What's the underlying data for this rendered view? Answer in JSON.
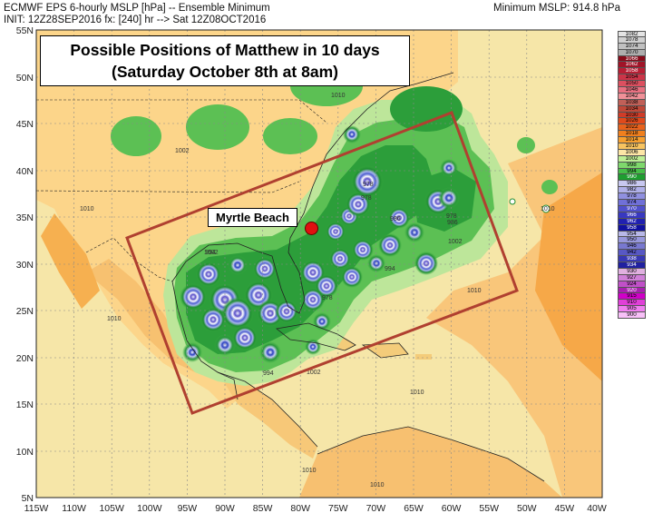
{
  "header": {
    "line1": "ECMWF EPS 6-hourly MSLP [hPa] -- Ensemble Minimum",
    "line2": "INIT: 12Z28SEP2016 fx: [240] hr --> Sat 12Z08OCT2016",
    "min_mslp": "Minimum MSLP: 914.8 hPa"
  },
  "title": {
    "line1": "Possible Positions of Matthew in 10 days",
    "line2": "(Saturday October 8th at 8am)"
  },
  "annotation": {
    "label": "Myrtle Beach",
    "lon": -78.9,
    "lat": 33.7
  },
  "axes": {
    "lat_ticks": [
      "55N",
      "50N",
      "45N",
      "40N",
      "35N",
      "30N",
      "25N",
      "20N",
      "15N",
      "10N",
      "5N"
    ],
    "lon_ticks": [
      "115W",
      "110W",
      "105W",
      "100W",
      "95W",
      "90W",
      "85W",
      "80W",
      "75W",
      "70W",
      "65W",
      "60W",
      "55W",
      "50W",
      "45W",
      "40W"
    ]
  },
  "contour_labels": [
    "1010",
    "1010",
    "1010",
    "1010",
    "1002",
    "1002",
    "1002",
    "1002",
    "994",
    "994",
    "994",
    "986",
    "986",
    "978",
    "978",
    "978",
    "978",
    "1010",
    "1010",
    "1010",
    "1010"
  ],
  "legend": {
    "labels": [
      "1082",
      "1078",
      "1074",
      "1070",
      "1066",
      "1062",
      "1058",
      "1054",
      "1050",
      "1046",
      "1042",
      "1038",
      "1034",
      "1030",
      "1026",
      "1022",
      "1018",
      "1014",
      "1010",
      "1006",
      "1002",
      "998",
      "994",
      "990",
      "986",
      "982",
      "978",
      "974",
      "970",
      "966",
      "962",
      "958",
      "954",
      "950",
      "946",
      "942",
      "938",
      "934",
      "930",
      "927",
      "924",
      "920",
      "915",
      "910",
      "905",
      "900"
    ],
    "colors": [
      "#e4e4e4",
      "#d0d0d0",
      "#c0c0c0",
      "#aeaeae",
      "#8a0a1a",
      "#a01428",
      "#b81e34",
      "#cc3448",
      "#dc5060",
      "#e87080",
      "#f09098",
      "#c06058",
      "#c04838",
      "#d03c28",
      "#e04a1c",
      "#e8621c",
      "#f0801e",
      "#f6a030",
      "#f8c460",
      "#fde6a6",
      "#bcee94",
      "#7ed86c",
      "#46be48",
      "#1e9e30",
      "#c8c8f0",
      "#b0b0e8",
      "#9090e0",
      "#7070d8",
      "#5050cc",
      "#3838c0",
      "#2020b0",
      "#1010a0",
      "#b8b8e8",
      "#9898dc",
      "#7878d0",
      "#5858c4",
      "#3838b4",
      "#2020a0",
      "#e0b0e0",
      "#d080d8",
      "#c050c8",
      "#a820b0",
      "#d000c8",
      "#e040d8",
      "#f080f0",
      "#f8c0f8"
    ]
  },
  "colors": {
    "ocean": "#f6e6a8",
    "land": "#fcd58a",
    "low_1006": "#bde69a",
    "low_1002": "#5cc054",
    "low_994": "#2c9e3a",
    "box_border": "#b04030",
    "marker": "#e01010"
  }
}
